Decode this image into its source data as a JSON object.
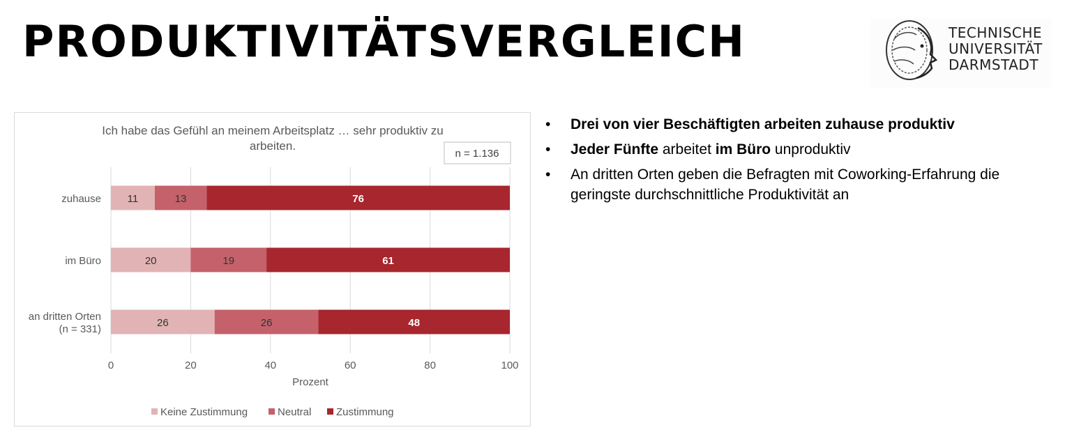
{
  "slide": {
    "title": "PRODUKTIVITÄTSVERGLEICH",
    "logo_lines": [
      "TECHNISCHE",
      "UNIVERSITÄT",
      "DARMSTADT"
    ],
    "logo_icon": "athena-head-logo"
  },
  "bullets": [
    {
      "parts": [
        {
          "text": "Drei von vier Beschäftigten arbeiten zuhause produktiv",
          "bold": true
        }
      ]
    },
    {
      "parts": [
        {
          "text": "Jeder Fünfte",
          "bold": true
        },
        {
          "text": " arbeitet ",
          "bold": false
        },
        {
          "text": "im Büro",
          "bold": true
        },
        {
          "text": " unproduktiv",
          "bold": false
        }
      ]
    },
    {
      "parts": [
        {
          "text": "An dritten Orten geben die Befragten mit Coworking-Erfahrung die geringste durchschnittliche Produktivität an",
          "bold": false
        }
      ]
    }
  ],
  "chart_data": {
    "type": "bar",
    "orientation": "horizontal",
    "stacked": true,
    "title": "Ich habe das Gefühl an meinem Arbeitsplatz …  sehr produktiv zu arbeiten.",
    "title_lines": [
      "Ich habe das Gefühl an meinem Arbeitsplatz …  sehr produktiv zu",
      "arbeiten."
    ],
    "annotation": "n = 1.136",
    "categories": [
      "zuhause",
      "im Büro",
      "an dritten Orten\n(n = 331)"
    ],
    "series": [
      {
        "name": "Keine Zustimmung",
        "values": [
          11,
          20,
          26
        ],
        "color": "#e2b3b4",
        "label_color": "#333333"
      },
      {
        "name": "Neutral",
        "values": [
          13,
          19,
          26
        ],
        "color": "#c4616a",
        "label_color": "#333333"
      },
      {
        "name": "Zustimmung",
        "values": [
          76,
          61,
          48
        ],
        "color": "#a8262d",
        "label_color": "#ffffff"
      }
    ],
    "xlabel": "Prozent",
    "ylabel": "",
    "xlim": [
      0,
      100
    ],
    "xticks": [
      0,
      20,
      40,
      60,
      80,
      100
    ],
    "grid": true,
    "legend": "bottom"
  }
}
